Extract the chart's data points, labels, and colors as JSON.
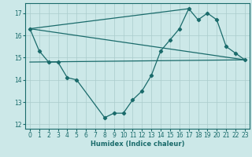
{
  "xlabel": "Humidex (Indice chaleur)",
  "xlim": [
    -0.5,
    23.5
  ],
  "ylim": [
    11.8,
    17.45
  ],
  "yticks": [
    12,
    13,
    14,
    15,
    16,
    17
  ],
  "xticks": [
    0,
    1,
    2,
    3,
    4,
    5,
    6,
    7,
    8,
    9,
    10,
    11,
    12,
    13,
    14,
    15,
    16,
    17,
    18,
    19,
    20,
    21,
    22,
    23
  ],
  "bg_color": "#cce8e8",
  "line_color": "#1a6b6b",
  "grid_color": "#aacccc",
  "main_line": {
    "x": [
      0,
      1,
      2,
      3,
      4,
      5,
      8,
      9,
      10,
      11,
      12,
      13,
      14,
      15,
      16,
      17,
      18,
      19,
      20,
      21,
      22,
      23
    ],
    "y": [
      16.3,
      15.3,
      14.8,
      14.8,
      14.1,
      14.0,
      12.3,
      12.5,
      12.5,
      13.1,
      13.5,
      14.2,
      15.3,
      15.8,
      16.3,
      17.2,
      16.7,
      17.0,
      16.7,
      15.5,
      15.2,
      14.9
    ]
  },
  "straight_lines": [
    {
      "x": [
        0,
        23
      ],
      "y": [
        16.3,
        14.9
      ]
    },
    {
      "x": [
        0,
        23
      ],
      "y": [
        14.8,
        14.9
      ]
    },
    {
      "x": [
        0,
        17
      ],
      "y": [
        16.3,
        17.2
      ]
    }
  ]
}
